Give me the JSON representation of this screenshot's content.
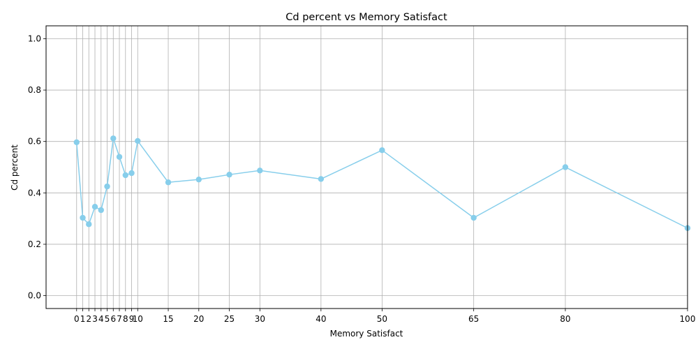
{
  "chart_data": {
    "type": "line",
    "title": "Cd percent vs Memory Satisfact",
    "xlabel": "Memory Satisfact",
    "ylabel": "Cd percent",
    "x": [
      0,
      1,
      2,
      3,
      4,
      5,
      6,
      7,
      8,
      9,
      10,
      15,
      20,
      25,
      30,
      40,
      50,
      65,
      80,
      100
    ],
    "series": [
      {
        "values": [
          0.597,
          0.303,
          0.278,
          0.346,
          0.333,
          0.425,
          0.612,
          0.54,
          0.469,
          0.477,
          0.602,
          0.441,
          0.452,
          0.471,
          0.487,
          0.454,
          0.566,
          0.303,
          0.5,
          0.263
        ]
      }
    ],
    "xticks": [
      0,
      1,
      2,
      3,
      4,
      5,
      6,
      7,
      8,
      9,
      10,
      15,
      20,
      25,
      30,
      40,
      50,
      65,
      80,
      100
    ],
    "yticks": [
      0.0,
      0.2,
      0.4,
      0.6,
      0.8,
      1.0
    ],
    "ytick_labels": [
      "0.0",
      "0.2",
      "0.4",
      "0.6",
      "0.8",
      "1.0"
    ],
    "xlim": [
      -5,
      100
    ],
    "ylim": [
      -0.05,
      1.05
    ],
    "grid": true,
    "line_color": "#87ceeb",
    "marker": "circle"
  }
}
